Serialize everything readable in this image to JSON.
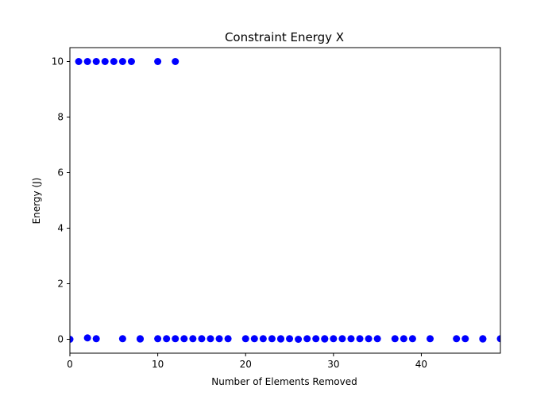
{
  "chart_data": {
    "type": "scatter",
    "title": "Constraint Energy X",
    "xlabel": "Number of Elements Removed",
    "ylabel": "Energy (J)",
    "xlim": [
      0,
      49
    ],
    "ylim": [
      -0.5,
      10.5
    ],
    "xticks": [
      0,
      10,
      20,
      30,
      40
    ],
    "yticks": [
      0,
      2,
      4,
      6,
      8,
      10
    ],
    "grid": false,
    "marker_color": "#0000ff",
    "series": [
      {
        "points": [
          [
            0,
            0.0
          ],
          [
            1,
            10.0
          ],
          [
            2,
            10.0
          ],
          [
            3,
            10.0
          ],
          [
            4,
            10.0
          ],
          [
            5,
            10.0
          ],
          [
            6,
            10.0
          ],
          [
            7,
            10.0
          ],
          [
            10,
            10.0
          ],
          [
            12,
            10.0
          ],
          [
            2,
            0.05
          ],
          [
            3,
            0.02
          ],
          [
            6,
            0.02
          ],
          [
            8,
            0.02
          ],
          [
            8,
            0.01
          ],
          [
            10,
            0.02
          ],
          [
            11,
            0.02
          ],
          [
            12,
            0.02
          ],
          [
            13,
            0.02
          ],
          [
            14,
            0.02
          ],
          [
            15,
            0.02
          ],
          [
            16,
            0.02
          ],
          [
            17,
            0.02
          ],
          [
            18,
            0.02
          ],
          [
            20,
            0.02
          ],
          [
            21,
            0.02
          ],
          [
            22,
            0.02
          ],
          [
            23,
            0.02
          ],
          [
            24,
            0.02
          ],
          [
            24,
            0.01
          ],
          [
            25,
            0.02
          ],
          [
            26,
            0.0
          ],
          [
            27,
            0.02
          ],
          [
            28,
            0.02
          ],
          [
            29,
            0.02
          ],
          [
            29,
            0.01
          ],
          [
            30,
            0.02
          ],
          [
            31,
            0.02
          ],
          [
            32,
            0.02
          ],
          [
            33,
            0.02
          ],
          [
            34,
            0.02
          ],
          [
            35,
            0.02
          ],
          [
            37,
            0.02
          ],
          [
            38,
            0.02
          ],
          [
            39,
            0.02
          ],
          [
            41,
            0.02
          ],
          [
            44,
            0.02
          ],
          [
            45,
            0.02
          ],
          [
            47,
            0.02
          ],
          [
            47,
            0.01
          ],
          [
            49,
            0.02
          ]
        ]
      }
    ]
  }
}
